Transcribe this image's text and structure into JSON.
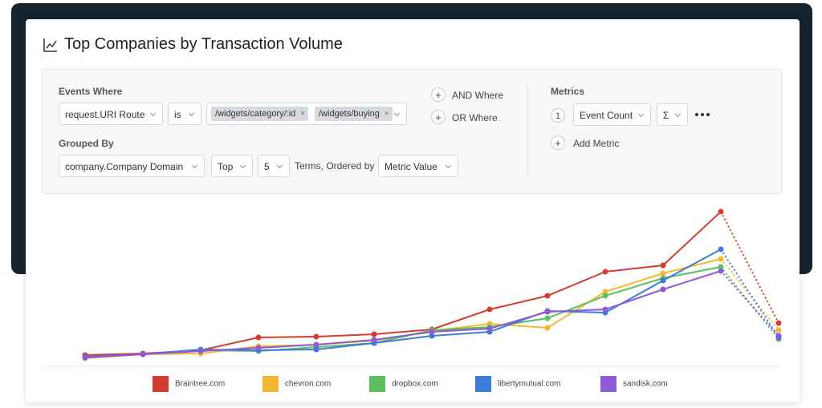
{
  "header": {
    "title": "Top Companies by Transaction Volume"
  },
  "query": {
    "events_where": {
      "label": "Events Where",
      "field": "request.URI Route",
      "operator": "is",
      "values": [
        "/widgets/category/:id",
        "/widgets/buying"
      ]
    },
    "and_where": "AND Where",
    "or_where": "OR Where",
    "grouped_by": {
      "label": "Grouped By",
      "field": "company.Company Domain",
      "mode": "Top",
      "count": 5,
      "terms_text": "Terms, Ordered by",
      "order": "Metric Value"
    },
    "metrics": {
      "label": "Metrics",
      "index": 1,
      "metric": "Event Count",
      "aggregation": "Σ",
      "add": "Add Metric"
    }
  },
  "chart_data": {
    "type": "line",
    "categories": [
      null,
      null,
      null,
      null,
      null,
      null,
      null,
      null,
      null,
      null,
      null,
      null,
      null
    ],
    "ylim": [
      0,
      100
    ],
    "dashed_last_segment": true,
    "series": [
      {
        "name": "Braintree.com",
        "color": "#d63b30",
        "values": [
          7,
          8,
          10,
          18,
          18.5,
          20,
          23,
          35.5,
          44,
          59,
          63,
          96.5,
          27
        ]
      },
      {
        "name": "chevron.com",
        "color": "#f5b731",
        "values": [
          5,
          7.5,
          8,
          12.5,
          13.5,
          16,
          22,
          26.5,
          24,
          46.5,
          58,
          67,
          22.5
        ]
      },
      {
        "name": "dropbox.com",
        "color": "#5cbf5e",
        "values": [
          5.5,
          7.5,
          10,
          9.5,
          12,
          14.5,
          22.5,
          24.5,
          30,
          44,
          55,
          62,
          17
        ]
      },
      {
        "name": "libertymutual.com",
        "color": "#3b7dd8",
        "values": [
          6,
          7.5,
          10.5,
          10,
          10.5,
          14.5,
          19,
          21.5,
          34.5,
          33.5,
          53.5,
          73,
          18
        ]
      },
      {
        "name": "sandisk.com",
        "color": "#8e5ad6",
        "values": [
          5.5,
          7.5,
          9.5,
          11.5,
          13.5,
          16.5,
          21.5,
          23.5,
          34,
          35.5,
          48,
          59.5,
          19
        ]
      }
    ]
  }
}
